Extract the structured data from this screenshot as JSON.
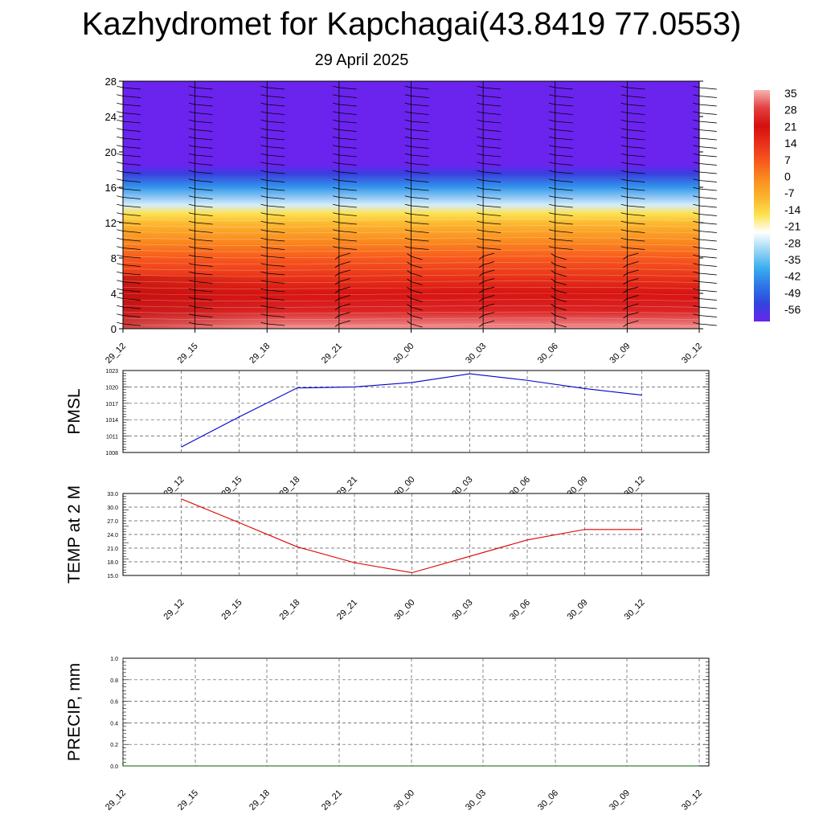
{
  "page": {
    "title": "Kazhydromet for Kapchagai(43.8419 77.0553)",
    "subtitle": "29 April 2025"
  },
  "chart_data": [
    {
      "type": "heatmap",
      "name": "temperature-height-section",
      "x_ticks": [
        "29_12",
        "29_15",
        "29_18",
        "29_21",
        "30_00",
        "30_03",
        "30_06",
        "30_09",
        "30_12"
      ],
      "y_ticks": [
        0,
        4,
        8,
        12,
        16,
        20,
        24,
        28
      ],
      "ylim": [
        0,
        28
      ],
      "colorbar": {
        "labels": [
          "35",
          "28",
          "21",
          "14",
          "7",
          "0",
          "-7",
          "-14",
          "-21",
          "-28",
          "-35",
          "-42",
          "-49",
          "-56"
        ],
        "colors": [
          "#f5b4b4",
          "#e54040",
          "#d40f0f",
          "#e8301a",
          "#f7591d",
          "#fa8c1f",
          "#fbb32c",
          "#fde24f",
          "#ffffff",
          "#9ad6f5",
          "#3aaeef",
          "#2d76e6",
          "#3145dd",
          "#6a24ee"
        ]
      },
      "temperature_profile": [
        {
          "h": 0,
          "t": 33
        },
        {
          "h": 2,
          "t": 24
        },
        {
          "h": 4,
          "t": 20
        },
        {
          "h": 6,
          "t": 13
        },
        {
          "h": 8,
          "t": 7
        },
        {
          "h": 10,
          "t": 0
        },
        {
          "h": 12,
          "t": -8
        },
        {
          "h": 13,
          "t": -14
        },
        {
          "h": 14,
          "t": -24
        },
        {
          "h": 16,
          "t": -38
        },
        {
          "h": 17.5,
          "t": -50
        },
        {
          "h": 18.5,
          "t": -58
        },
        {
          "h": 19.5,
          "t": -56
        },
        {
          "h": 28,
          "t": -56
        }
      ],
      "wind_barbs": true
    },
    {
      "type": "line",
      "name": "pmsl",
      "ylabel": "PMSL",
      "x": [
        "29_12",
        "29_15",
        "29_18",
        "29_21",
        "30_00",
        "30_03",
        "30_06",
        "30_09",
        "30_12"
      ],
      "y_ticks": [
        "1008",
        "1011",
        "1014",
        "1017",
        "1020",
        "1023"
      ],
      "ylim": [
        1008,
        1023
      ],
      "series": [
        {
          "values": [
            1009.0,
            1014.5,
            1019.8,
            1020.0,
            1020.8,
            1022.4,
            1021.2,
            1019.7,
            1018.5
          ],
          "color": "#0000cc"
        }
      ],
      "grid": true
    },
    {
      "type": "line",
      "name": "temp-2m",
      "ylabel": "TEMP at 2 M",
      "x": [
        "29_12",
        "29_15",
        "29_18",
        "29_21",
        "30_00",
        "30_03",
        "30_06",
        "30_09",
        "30_12"
      ],
      "y_ticks": [
        "15.0",
        "18.0",
        "21.0",
        "24.0",
        "27.0",
        "30.0",
        "33.0"
      ],
      "ylim": [
        15,
        33
      ],
      "series": [
        {
          "values": [
            31.8,
            26.6,
            21.3,
            17.8,
            15.6,
            19.2,
            22.8,
            25.1,
            25.1
          ],
          "color": "#dd0000"
        }
      ],
      "grid": true
    },
    {
      "type": "line",
      "name": "precip",
      "ylabel": "PRECIP, mm",
      "x_ticks": [
        "29_12",
        "29_15",
        "29_18",
        "29_21",
        "30_00",
        "30_03",
        "30_06",
        "30_09",
        "30_12"
      ],
      "y_ticks": [
        "0.0",
        "0.2",
        "0.4",
        "0.6",
        "0.8",
        "1.0"
      ],
      "ylim": [
        0,
        1
      ],
      "series": [
        {
          "values": [
            0,
            0,
            0,
            0,
            0,
            0,
            0,
            0,
            0
          ],
          "color": "#006400"
        }
      ],
      "grid": true
    }
  ]
}
